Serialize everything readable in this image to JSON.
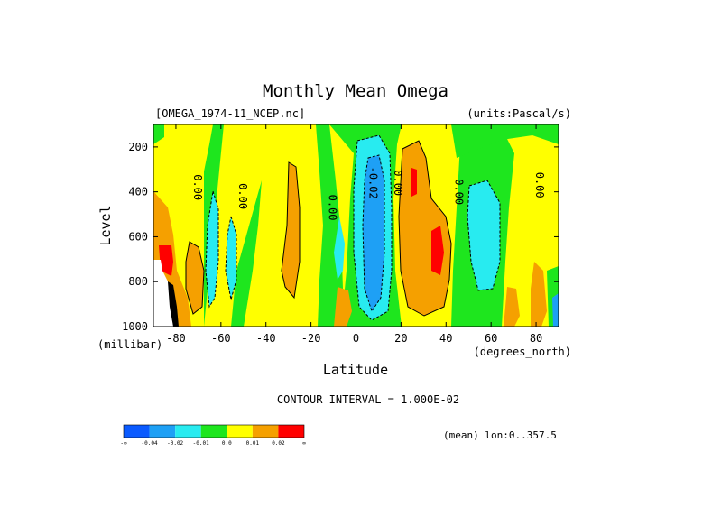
{
  "chart_data": {
    "type": "contour",
    "title": "Monthly Mean Omega",
    "dataset_label": "[OMEGA_1974-11_NCEP.nc]",
    "units_label": "(units:Pascal/s)",
    "xlabel": "Latitude",
    "x_units_label": "(degrees_north)",
    "ylabel": "Level",
    "y_units_label": "(millibar)",
    "xlim": [
      -90,
      90
    ],
    "ylim": [
      100,
      1000
    ],
    "y_inverted": true,
    "x_ticks": [
      -80,
      -60,
      -40,
      -20,
      0,
      20,
      40,
      60,
      80
    ],
    "y_ticks": [
      200,
      400,
      600,
      800,
      1000
    ],
    "contour_interval_text": "CONTOUR INTERVAL = 1.000E-02",
    "mean_note": "(mean) lon:0..357.5",
    "contour_labels": [
      {
        "text": "0.00",
        "lat": -72,
        "lev": 380
      },
      {
        "text": "0.00",
        "lat": -52,
        "lev": 420
      },
      {
        "text": "0.00",
        "lat": -12,
        "lev": 470
      },
      {
        "text": "-0.02",
        "lat": 6,
        "lev": 360
      },
      {
        "text": "0.00",
        "lat": 17,
        "lev": 360
      },
      {
        "text": "0.00",
        "lat": 44,
        "lev": 400
      },
      {
        "text": "0.00",
        "lat": 80,
        "lev": 370
      }
    ],
    "colorbar": {
      "colors": [
        "#0a5aff",
        "#1ea0f5",
        "#28ebf0",
        "#1ee61e",
        "#ffff00",
        "#f5a000",
        "#ff0000"
      ],
      "labels": [
        "-∞",
        "-0.04",
        "-0.02",
        "-0.01",
        "0.0",
        "0.01",
        "0.02",
        "∞"
      ]
    },
    "levels": {
      "blue": "< -0.04",
      "light_blue": "-0.04 to -0.02",
      "cyan": "-0.02 to -0.01",
      "green": "-0.01 to 0.0",
      "yellow": "0.0 to 0.01",
      "orange": "0.01 to 0.02",
      "red": "> 0.02"
    }
  }
}
